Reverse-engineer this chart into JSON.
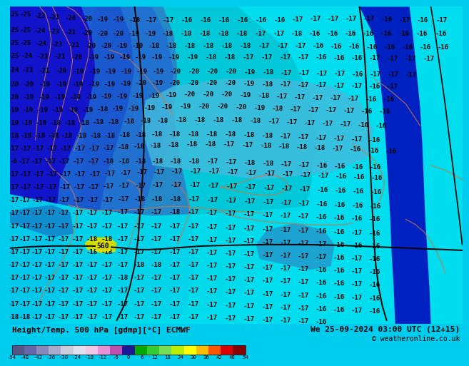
{
  "title_left": "Height/Temp. 500 hPa [gdmp][°C] ECMWF",
  "title_right": "We 25-09-2024 03:00 UTC (12+15)",
  "copyright": "© weatheronline.co.uk",
  "bg_color": "#00ccff",
  "map_cyan": "#00d8e8",
  "map_light_cyan": "#00f0f0",
  "map_dark_blue1": "#0000cc",
  "map_dark_blue2": "#1515bb",
  "map_mid_blue": "#2828dd",
  "map_blue_cyan": "#3399dd",
  "coast_color": "#cc7744",
  "contour_color": "#000000",
  "label_color": "#000000",
  "bottom_bar_color": "#00aaaa",
  "label_fontsize": 6.5,
  "colorbar_values": [
    -54,
    -48,
    -42,
    -36,
    -30,
    -24,
    -18,
    -12,
    -6,
    0,
    6,
    12,
    18,
    24,
    30,
    36,
    42,
    48,
    54
  ],
  "colorbar_colors": [
    "#555588",
    "#6666aa",
    "#8888bb",
    "#aaaacc",
    "#ccccdd",
    "#e0e0ee",
    "#f0c8e8",
    "#e890d8",
    "#c050b0",
    "#181898",
    "#00aa00",
    "#33cc33",
    "#77dd55",
    "#bbee00",
    "#ffff00",
    "#ffbb00",
    "#ff5500",
    "#dd0000",
    "#880000"
  ]
}
